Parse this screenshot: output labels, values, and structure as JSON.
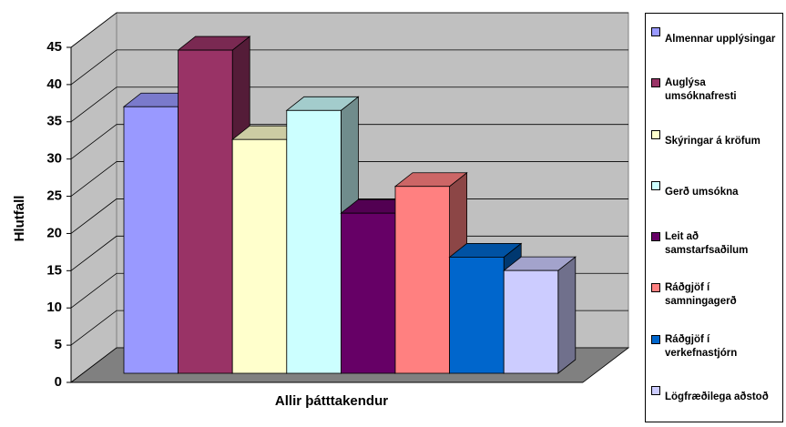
{
  "chart_data": {
    "type": "bar3d",
    "ylabel": "Hlutfall",
    "categories": [
      "Allir þátttakendur"
    ],
    "ylim": [
      0,
      45
    ],
    "yticks": [
      0,
      5,
      10,
      15,
      20,
      25,
      30,
      35,
      40,
      45
    ],
    "grid": true,
    "legend": "right",
    "series": [
      {
        "name": "Almennar upplýsingar",
        "color": "#9999ff",
        "values": [
          35.8
        ]
      },
      {
        "name": "Auglýsa umsóknafresti",
        "color": "#993366",
        "values": [
          43.4
        ]
      },
      {
        "name": "Skýringar á kröfum",
        "color": "#ffffcc",
        "values": [
          31.4
        ]
      },
      {
        "name": "Gerð umsókna",
        "color": "#ccffff",
        "values": [
          35.3
        ]
      },
      {
        "name": "Leit að samstarfsaðilum",
        "color": "#660066",
        "values": [
          21.5
        ]
      },
      {
        "name": "Ráðgjöf í samningagerð",
        "color": "#ff8080",
        "values": [
          25.1
        ]
      },
      {
        "name": "Ráðgjöf í verkefnastjórn",
        "color": "#0066cc",
        "values": [
          15.6
        ]
      },
      {
        "name": "Lögfræðilega aðstoð",
        "color": "#ccccff",
        "values": [
          13.8
        ]
      }
    ]
  }
}
